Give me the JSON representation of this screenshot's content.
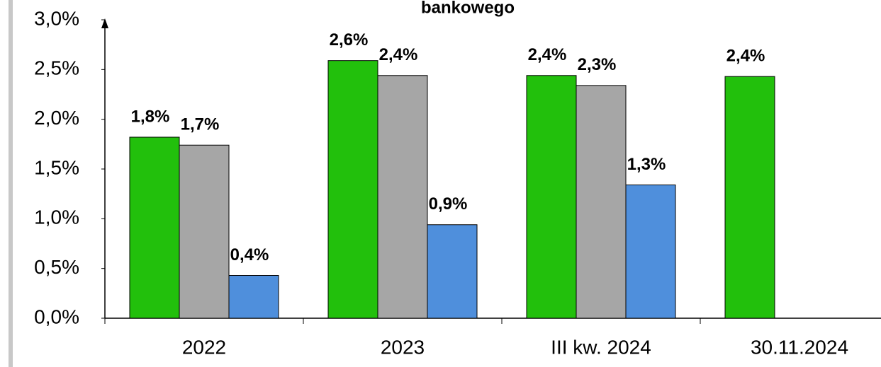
{
  "chart_data": {
    "type": "bar",
    "title": "bankowego",
    "categories": [
      "2022",
      "2023",
      "III kw. 2024",
      "30.11.2024"
    ],
    "series": [
      {
        "color": "#22c00c",
        "values": [
          1.82,
          2.59,
          2.44,
          2.43
        ],
        "value_labels": [
          "1,8%",
          "2,6%",
          "2,4%",
          "2,4%"
        ]
      },
      {
        "color": "#a6a6a6",
        "values": [
          1.74,
          2.44,
          2.34,
          null
        ],
        "value_labels": [
          "1,7%",
          "2,4%",
          "2,3%",
          null
        ]
      },
      {
        "color": "#4f8fdc",
        "values": [
          0.43,
          0.94,
          1.34,
          null
        ],
        "value_labels": [
          "0,4%",
          "0,9%",
          "1,3%",
          null
        ]
      }
    ],
    "ylim": [
      0,
      3
    ],
    "yticks": [
      {
        "value": 0,
        "label": "0,0%"
      },
      {
        "value": 0.5,
        "label": "0,5%"
      },
      {
        "value": 1,
        "label": "1,0%"
      },
      {
        "value": 1.5,
        "label": "1,5%"
      },
      {
        "value": 2,
        "label": "2,0%"
      },
      {
        "value": 2.5,
        "label": "2,5%"
      },
      {
        "value": 3,
        "label": "3,0%"
      }
    ]
  }
}
